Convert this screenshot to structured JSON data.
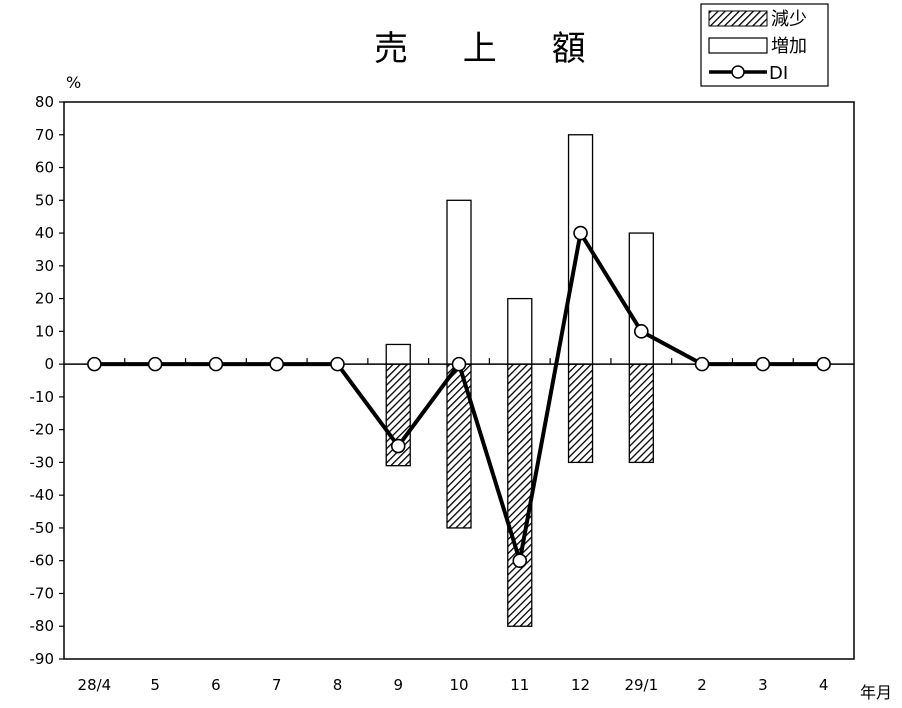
{
  "chart_data": {
    "type": "bar",
    "title": "売 上 額",
    "ylabel": "%",
    "xlabel": "年月",
    "ylim": [
      -90,
      80
    ],
    "ytick_step": 10,
    "categories": [
      "28/4",
      "5",
      "6",
      "7",
      "8",
      "9",
      "10",
      "11",
      "12",
      "29/1",
      "2",
      "3",
      "4"
    ],
    "series": [
      {
        "name": "減少",
        "kind": "bar",
        "pattern": "hatched",
        "values": [
          0,
          0,
          0,
          0,
          0,
          -31,
          -50,
          -80,
          -30,
          -30,
          0,
          0,
          0
        ]
      },
      {
        "name": "増加",
        "kind": "bar",
        "pattern": "white",
        "values": [
          0,
          0,
          0,
          0,
          0,
          6,
          50,
          20,
          70,
          40,
          0,
          0,
          0
        ]
      },
      {
        "name": "DI",
        "kind": "line",
        "marker": "circle",
        "values": [
          0,
          0,
          0,
          0,
          0,
          -25,
          0,
          -60,
          40,
          10,
          0,
          0,
          0
        ]
      }
    ],
    "legend_position": "top-right",
    "grid": false,
    "colors": {
      "line": "#000000",
      "bar_edge": "#000000",
      "background": "#ffffff"
    }
  }
}
